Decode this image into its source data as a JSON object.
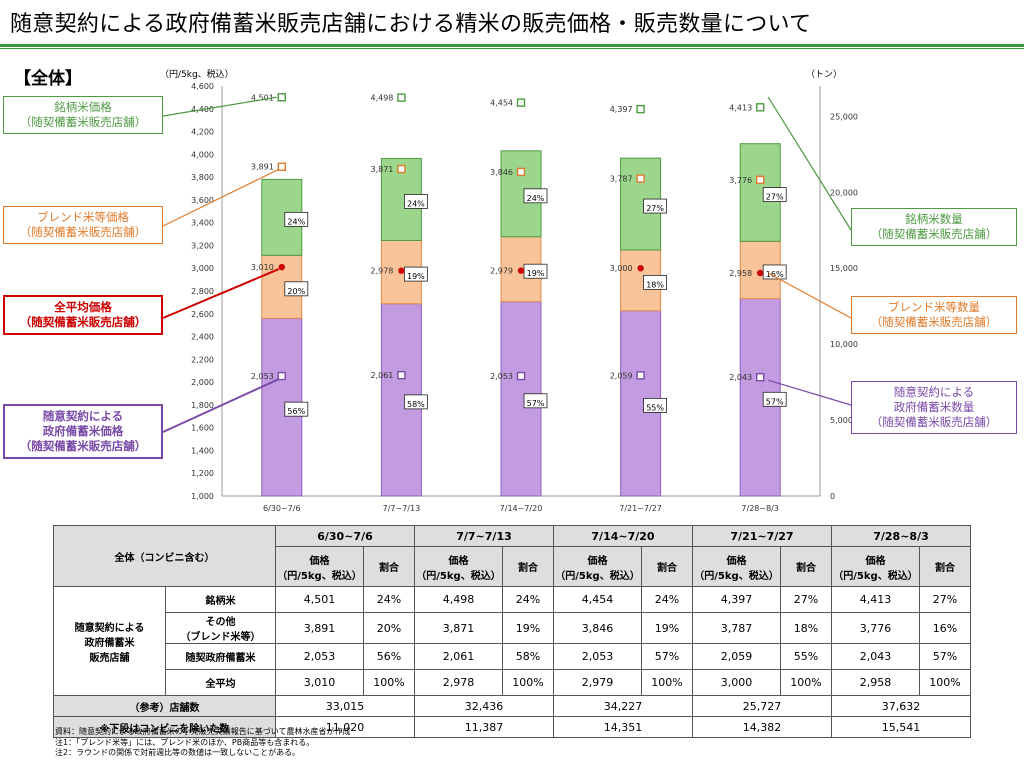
{
  "title": "随意契約による政府備蓄米販売店舗における精米の販売価格・販売数量について",
  "section_label": "【全体】",
  "chart_data": {
    "type": "bar",
    "categories": [
      "6/30~7/6",
      "7/7~7/13",
      "7/14~7/20",
      "7/21~7/27",
      "7/28~8/3"
    ],
    "left_axis": {
      "label": "（円/5kg、税込）",
      "ylim": [
        1000,
        4600
      ],
      "ticks": [
        "1,000",
        "1,200",
        "1,400",
        "1,600",
        "1,800",
        "2,000",
        "2,200",
        "2,400",
        "2,600",
        "2,800",
        "3,000",
        "3,200",
        "3,400",
        "3,600",
        "3,800",
        "4,000",
        "4,200",
        "4,400",
        "4,600"
      ]
    },
    "right_axis": {
      "label": "（トン）",
      "ylim": [
        0,
        27000
      ],
      "ticks": [
        "0",
        "5,000",
        "10,000",
        "15,000",
        "20,000",
        "25,000"
      ]
    },
    "stacked_bars": [
      {
        "name": "随意契約による政府備蓄米数量",
        "color": "#c39be0",
        "edge": "#8e60c0",
        "values": [
          11700,
          12660,
          12800,
          12200,
          13000
        ],
        "shares": [
          "56%",
          "58%",
          "57%",
          "55%",
          "57%"
        ]
      },
      {
        "name": "ブレンド米等数量",
        "color": "#f9c49a",
        "edge": "#e08b4a",
        "values": [
          4150,
          4170,
          4270,
          4000,
          3770
        ],
        "shares": [
          "20%",
          "19%",
          "19%",
          "18%",
          "16%"
        ]
      },
      {
        "name": "銘柄米数量",
        "color": "#9cd68c",
        "edge": "#4d9a42",
        "values": [
          5000,
          5400,
          5660,
          6050,
          6430
        ],
        "shares": [
          "24%",
          "24%",
          "24%",
          "27%",
          "27%"
        ]
      }
    ],
    "price_series": [
      {
        "name": "銘柄米価格",
        "color": "#4d9a42",
        "marker": "square-open",
        "values": [
          4501,
          4498,
          4454,
          4397,
          4413
        ],
        "labels": [
          "4,501",
          "4,498",
          "4,454",
          "4,397",
          "4,413"
        ]
      },
      {
        "name": "ブレンド米等価格",
        "color": "#e07a2a",
        "marker": "square-open",
        "values": [
          3891,
          3871,
          3846,
          3787,
          3776
        ],
        "labels": [
          "3,891",
          "3,871",
          "3,846",
          "3,787",
          "3,776"
        ]
      },
      {
        "name": "全平均価格",
        "color": "#cc0000",
        "marker": "circle-filled",
        "values": [
          3010,
          2978,
          2979,
          3000,
          2958
        ],
        "labels": [
          "3,010",
          "2,978",
          "2,979",
          "3,000",
          "2,958"
        ]
      },
      {
        "name": "随意契約による政府備蓄米価格",
        "color": "#7a4aa8",
        "marker": "square-open",
        "values": [
          2053,
          2061,
          2053,
          2059,
          2043
        ],
        "labels": [
          "2,053",
          "2,061",
          "2,053",
          "2,059",
          "2,043"
        ]
      }
    ]
  },
  "callouts": {
    "brand_price": [
      "銘柄米価格",
      "（随契備蓄米販売店舗）"
    ],
    "blend_price": [
      "ブレンド米等価格",
      "（随契備蓄米販売店舗）"
    ],
    "avg_price": [
      "全平均価格",
      "（随契備蓄米販売店舗）"
    ],
    "gov_price": [
      "随意契約による",
      "政府備蓄米価格",
      "（随契備蓄米販売店舗）"
    ],
    "brand_qty": [
      "銘柄米数量",
      "（随契備蓄米販売店舗）"
    ],
    "blend_qty": [
      "ブレンド米等数量",
      "（随契備蓄米販売店舗）"
    ],
    "gov_qty": [
      "随意契約による",
      "政府備蓄米数量",
      "（随契備蓄米販売店舗）"
    ]
  },
  "table": {
    "corner_label": "全体（コンビニ含む）",
    "periods": [
      "6/30~7/6",
      "7/7~7/13",
      "7/14~7/20",
      "7/21~7/27",
      "7/28~8/3"
    ],
    "price_header": [
      "価格",
      "（円/5kg、税込）"
    ],
    "share_header": "割合",
    "group_label": [
      "随意契約による",
      "政府備蓄米",
      "販売店舗"
    ],
    "rows": [
      {
        "label": [
          "銘柄米"
        ],
        "cells": [
          [
            "4,501",
            "24%"
          ],
          [
            "4,498",
            "24%"
          ],
          [
            "4,454",
            "24%"
          ],
          [
            "4,397",
            "27%"
          ],
          [
            "4,413",
            "27%"
          ]
        ]
      },
      {
        "label": [
          "その他",
          "（ブレンド米等）"
        ],
        "cells": [
          [
            "3,891",
            "20%"
          ],
          [
            "3,871",
            "19%"
          ],
          [
            "3,846",
            "19%"
          ],
          [
            "3,787",
            "18%"
          ],
          [
            "3,776",
            "16%"
          ]
        ]
      },
      {
        "label": [
          "随契政府備蓄米"
        ],
        "cells": [
          [
            "2,053",
            "56%"
          ],
          [
            "2,061",
            "58%"
          ],
          [
            "2,053",
            "57%"
          ],
          [
            "2,059",
            "55%"
          ],
          [
            "2,043",
            "57%"
          ]
        ]
      },
      {
        "label": [
          "全平均"
        ],
        "cells": [
          [
            "3,010",
            "100%"
          ],
          [
            "2,978",
            "100%"
          ],
          [
            "2,979",
            "100%"
          ],
          [
            "3,000",
            "100%"
          ],
          [
            "2,958",
            "100%"
          ]
        ]
      }
    ],
    "store_label": "（参考）店舗数",
    "store_counts": [
      "33,015",
      "32,436",
      "34,227",
      "25,727",
      "37,632"
    ],
    "store_sub_label": "※下段はコンビニを除いた数",
    "store_counts_ex": [
      "11,020",
      "11,387",
      "14,351",
      "14,382",
      "15,541"
    ]
  },
  "notes": [
    "資料：随意契約による政府備蓄米の小売販売実績報告に基づいて農林水産省が作成",
    "注1：「ブレンド米等」には、ブレンド米のほか、PB商品等も含まれる。",
    "注2：ラウンドの関係で対前週比等の数値は一致しないことがある。"
  ]
}
